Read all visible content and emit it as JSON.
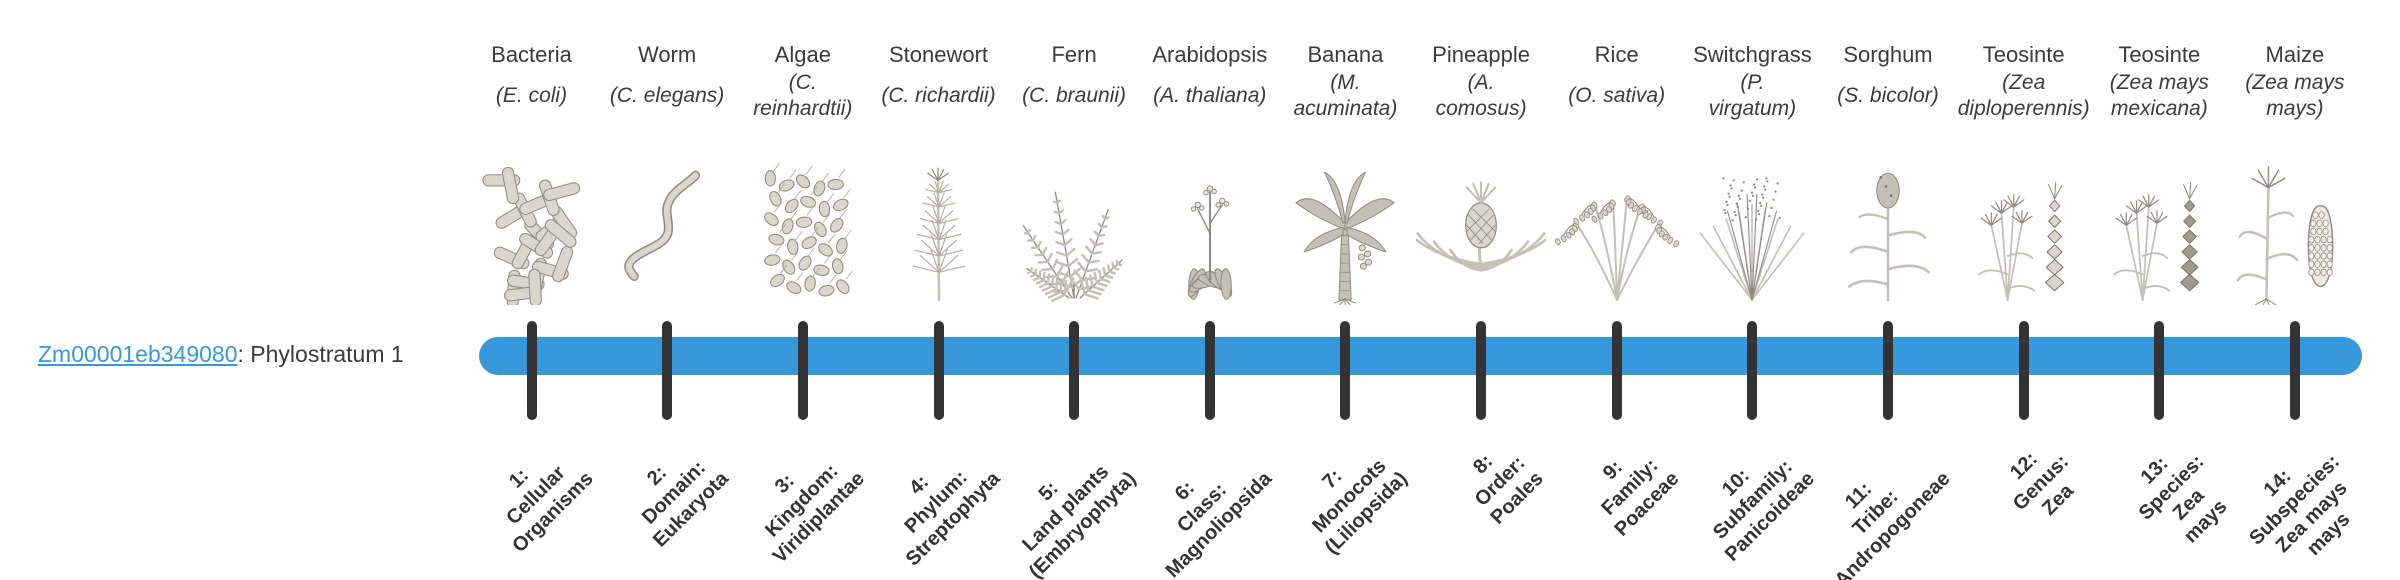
{
  "gene": {
    "id": "Zm00001eb349080",
    "suffix": ": Phylostratum 1"
  },
  "colors": {
    "bar": "#3898dc",
    "tick": "#333333",
    "link": "#3898dc"
  },
  "organisms": [
    {
      "name": "Bacteria",
      "sci": [
        "(E. coli)"
      ],
      "icon": "bacteria-icon",
      "stratum": [
        "1:",
        "Cellular",
        "Organisms"
      ]
    },
    {
      "name": "Worm",
      "sci": [
        "(C. elegans)"
      ],
      "icon": "worm-icon",
      "stratum": [
        "2:",
        "Domain:",
        "Eukaryota"
      ]
    },
    {
      "name": "Algae",
      "sci": [
        "(C.",
        "reinhardtii)"
      ],
      "icon": "algae-icon",
      "stratum": [
        "3:",
        "Kingdom:",
        "Viridiplantae"
      ]
    },
    {
      "name": "Stonewort",
      "sci": [
        "(C. richardii)"
      ],
      "icon": "stonewort-icon",
      "stratum": [
        "4:",
        "Phylum:",
        "Streptophyta"
      ]
    },
    {
      "name": "Fern",
      "sci": [
        "(C. braunii)"
      ],
      "icon": "fern-icon",
      "stratum": [
        "5:",
        "Land plants",
        "(Embryophyta)"
      ]
    },
    {
      "name": "Arabidopsis",
      "sci": [
        "(A. thaliana)"
      ],
      "icon": "arabidopsis-icon",
      "stratum": [
        "6:",
        "Class:",
        "Magnoliopsida"
      ]
    },
    {
      "name": "Banana",
      "sci": [
        "(M.",
        "acuminata)"
      ],
      "icon": "banana-icon",
      "stratum": [
        "7:",
        "Monocots",
        "(Liliopsida)"
      ]
    },
    {
      "name": "Pineapple",
      "sci": [
        "(A.",
        "comosus)"
      ],
      "icon": "pineapple-icon",
      "stratum": [
        "8:",
        "Order:",
        "Poales"
      ]
    },
    {
      "name": "Rice",
      "sci": [
        "(O. sativa)"
      ],
      "icon": "rice-icon",
      "stratum": [
        "9:",
        "Family:",
        "Poaceae"
      ]
    },
    {
      "name": "Switchgrass",
      "sci": [
        "(P.",
        "virgatum)"
      ],
      "icon": "switchgrass-icon",
      "stratum": [
        "10:",
        "Subfamily:",
        "Panicoideae"
      ]
    },
    {
      "name": "Sorghum",
      "sci": [
        "(S. bicolor)"
      ],
      "icon": "sorghum-icon",
      "stratum": [
        "11:",
        "Tribe:",
        "Andropogoneae"
      ]
    },
    {
      "name": "Teosinte",
      "sci": [
        "(Zea",
        "diploperennis)"
      ],
      "icon": "teosinte-icon",
      "stratum": [
        "12:",
        "Genus:",
        "Zea"
      ]
    },
    {
      "name": "Teosinte",
      "sci": [
        "(Zea mays",
        "mexicana)"
      ],
      "icon": "teosinte-dark-icon",
      "stratum": [
        "13:",
        "Species:",
        "Zea",
        "mays"
      ]
    },
    {
      "name": "Maize",
      "sci": [
        "(Zea mays",
        "mays)"
      ],
      "icon": "maize-icon",
      "stratum": [
        "14:",
        "Subspecies:",
        "Zea mays",
        "mays"
      ]
    }
  ]
}
